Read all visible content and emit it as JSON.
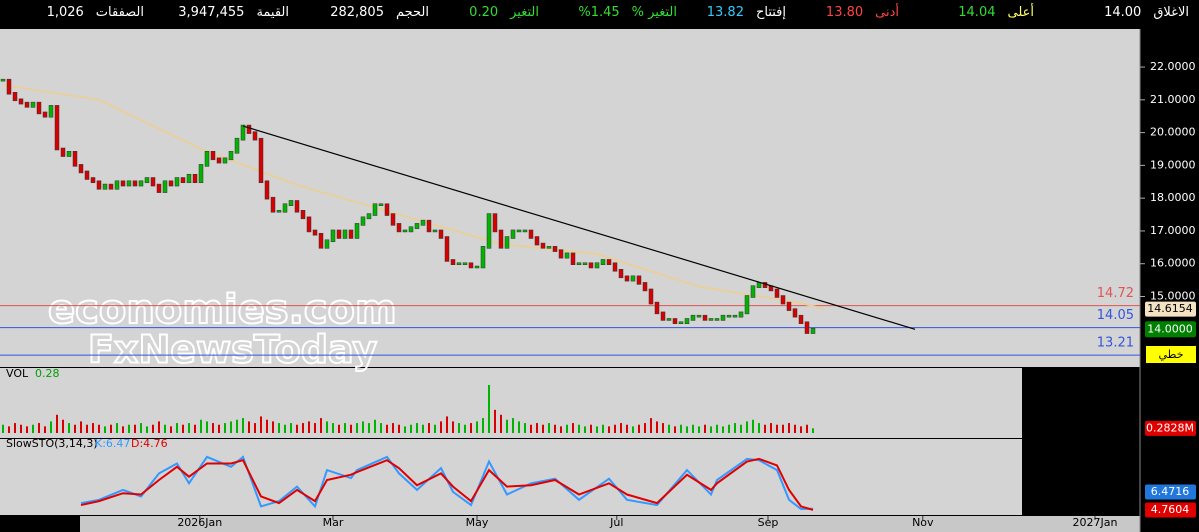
{
  "header": [
    {
      "label": "الاغلاق",
      "value": "14.00",
      "label_color": "#ffffff",
      "value_color": "#ffffff"
    },
    {
      "label": "أعلى",
      "value": "14.04",
      "label_color": "#ffff66",
      "value_color": "#33dd33"
    },
    {
      "label": "أدنى",
      "value": "13.80",
      "label_color": "#ff4444",
      "value_color": "#ff4444"
    },
    {
      "label": "إفتتاح",
      "value": "13.82",
      "label_color": "#ffffff",
      "value_color": "#33ccff"
    },
    {
      "label": "التغير %",
      "value": "1.45%",
      "label_color": "#33dd33",
      "value_color": "#33dd33"
    },
    {
      "label": "التغير",
      "value": "0.20",
      "label_color": "#33dd33",
      "value_color": "#33dd33"
    },
    {
      "label": "الحجم",
      "value": "282,805",
      "label_color": "#ffffff",
      "value_color": "#ffffff"
    },
    {
      "label": "القيمة",
      "value": "3,947,455",
      "label_color": "#ffffff",
      "value_color": "#ffffff"
    },
    {
      "label": "الصفقات",
      "value": "1,026",
      "label_color": "#ffffff",
      "value_color": "#ffffff"
    }
  ],
  "chart_data": [
    {
      "type": "candlestick",
      "xlim": [
        -0.5,
        189.5
      ],
      "xticks": [
        {
          "value": 32.8,
          "label": "2026Jan"
        },
        {
          "value": 55,
          "label": "Mar"
        },
        {
          "value": 79,
          "label": "May"
        },
        {
          "value": 102.3,
          "label": "Jul"
        },
        {
          "value": 127.5,
          "label": "Sep"
        },
        {
          "value": 153.3,
          "label": "Nov"
        },
        {
          "value": 182,
          "label": "2027Jan"
        }
      ],
      "ylim": [
        12.88,
        23.13
      ],
      "yticks": [
        {
          "value": 22,
          "label": "22.0000"
        },
        {
          "value": 21,
          "label": "21.0000"
        },
        {
          "value": 20,
          "label": "20.0000"
        },
        {
          "value": 19,
          "label": "19.0000"
        },
        {
          "value": 18,
          "label": "18.0000"
        },
        {
          "value": 17,
          "label": "17.0000"
        },
        {
          "value": 16,
          "label": "16.0000"
        },
        {
          "value": 15,
          "label": "15.0000"
        }
      ],
      "values": [
        21.6,
        21.2,
        21.0,
        20.9,
        20.8,
        20.9,
        20.6,
        20.5,
        20.8,
        19.5,
        19.3,
        19.4,
        19.0,
        18.8,
        18.6,
        18.5,
        18.3,
        18.4,
        18.3,
        18.5,
        18.4,
        18.5,
        18.4,
        18.5,
        18.6,
        18.4,
        18.2,
        18.5,
        18.4,
        18.6,
        18.5,
        18.7,
        18.5,
        19.0,
        19.4,
        19.2,
        19.1,
        19.2,
        19.4,
        19.8,
        20.2,
        20.0,
        19.8,
        18.5,
        18.0,
        17.6,
        17.6,
        17.8,
        17.9,
        17.6,
        17.4,
        17.0,
        16.9,
        16.5,
        16.7,
        17.0,
        16.8,
        17.0,
        16.8,
        17.2,
        17.4,
        17.5,
        17.8,
        17.8,
        17.5,
        17.2,
        17.0,
        17.0,
        17.1,
        17.2,
        17.3,
        17.0,
        17.0,
        16.8,
        16.1,
        16.0,
        16.0,
        16.0,
        15.9,
        15.9,
        16.5,
        17.5,
        17.0,
        16.5,
        16.8,
        17.0,
        17.0,
        17.0,
        16.8,
        16.6,
        16.5,
        16.5,
        16.4,
        16.2,
        16.3,
        16.0,
        16.0,
        16.0,
        15.9,
        16.0,
        16.1,
        16.0,
        15.8,
        15.6,
        15.5,
        15.6,
        15.4,
        15.2,
        14.8,
        14.5,
        14.3,
        14.3,
        14.2,
        14.2,
        14.3,
        14.4,
        14.4,
        14.3,
        14.3,
        14.3,
        14.4,
        14.4,
        14.4,
        14.5,
        15.0,
        15.3,
        15.4,
        15.3,
        15.2,
        15.0,
        14.8,
        14.6,
        14.4,
        14.2,
        13.9,
        14.0
      ],
      "colors": {
        "up": "#00b400",
        "down": "#d80000"
      },
      "ma": {
        "color": "#e9cf9c",
        "x": [
          0,
          16,
          33,
          49,
          66,
          83,
          99,
          116,
          133,
          137
        ],
        "values": [
          21.45,
          21.0,
          19.5,
          18.4,
          17.5,
          16.6,
          16.3,
          15.3,
          14.8,
          14.6154
        ]
      },
      "trendline": {
        "color": "#000000",
        "x": [
          40,
          152
        ],
        "values": [
          20.2,
          14.0
        ]
      },
      "levels": [
        {
          "value": 14.72,
          "color": "#e05555"
        },
        {
          "value": 14.05,
          "color": "#3355dd"
        },
        {
          "value": 13.21,
          "color": "#3355dd"
        }
      ],
      "price_marker": {
        "value": 14,
        "label": "14.0000"
      },
      "button": "خطي",
      "watermark": [
        "economies.com",
        "FxNewsToday"
      ]
    },
    {
      "type": "bar",
      "title": "VOL",
      "current": {
        "value": 0.2828,
        "label": "0.28"
      },
      "marker": {
        "value": 0.2828,
        "label": "0.2828M"
      },
      "ylim": [
        0,
        3.2
      ],
      "values": [
        0.5,
        0.4,
        0.6,
        0.5,
        0.4,
        0.5,
        0.6,
        0.4,
        0.7,
        1.1,
        0.8,
        0.6,
        0.5,
        0.7,
        0.5,
        0.6,
        0.5,
        0.4,
        0.5,
        0.6,
        0.4,
        0.5,
        0.5,
        0.6,
        0.4,
        0.5,
        0.7,
        0.5,
        0.4,
        0.6,
        0.5,
        0.6,
        0.5,
        0.8,
        0.7,
        0.6,
        0.5,
        0.6,
        0.7,
        0.8,
        0.9,
        0.7,
        0.6,
        1.0,
        0.8,
        0.7,
        0.6,
        0.5,
        0.6,
        0.5,
        0.6,
        0.7,
        0.6,
        0.9,
        0.7,
        0.6,
        0.5,
        0.6,
        0.5,
        0.6,
        0.7,
        0.6,
        0.8,
        0.6,
        0.5,
        0.6,
        0.5,
        0.4,
        0.5,
        0.6,
        0.5,
        0.6,
        0.5,
        0.7,
        1.0,
        0.7,
        0.6,
        0.5,
        0.6,
        0.7,
        0.9,
        2.9,
        1.4,
        1.1,
        0.8,
        0.9,
        0.7,
        0.6,
        0.5,
        0.6,
        0.5,
        0.6,
        0.5,
        0.4,
        0.5,
        0.6,
        0.5,
        0.4,
        0.5,
        0.4,
        0.5,
        0.4,
        0.5,
        0.6,
        0.5,
        0.4,
        0.5,
        0.6,
        0.9,
        0.7,
        0.6,
        0.5,
        0.4,
        0.5,
        0.4,
        0.5,
        0.4,
        0.5,
        0.4,
        0.5,
        0.4,
        0.5,
        0.6,
        0.5,
        0.7,
        0.8,
        0.6,
        0.5,
        0.6,
        0.5,
        0.5,
        0.6,
        0.5,
        0.4,
        0.5,
        0.2828
      ]
    },
    {
      "type": "line",
      "title": "SlowSTO(3,14,3)",
      "ylim": [
        0,
        100
      ],
      "series": [
        {
          "legend": "K:6.47",
          "color": "#3399ff",
          "x": [
            13,
            16,
            20,
            23,
            26,
            29,
            31,
            34,
            38,
            40,
            43,
            46,
            49,
            52,
            54,
            58,
            59,
            64,
            66,
            69,
            73,
            75,
            78,
            81,
            84,
            88,
            92,
            96,
            101,
            104,
            109,
            114,
            118,
            119,
            124,
            126,
            129,
            131,
            133,
            135
          ],
          "values": [
            15,
            20,
            35,
            25,
            60,
            75,
            45,
            85,
            70,
            85,
            10,
            18,
            40,
            10,
            65,
            53,
            65,
            85,
            60,
            35,
            68,
            32,
            12,
            78,
            28,
            45,
            52,
            20,
            52,
            20,
            12,
            65,
            28,
            50,
            82,
            80,
            65,
            20,
            6,
            6.4716
          ]
        },
        {
          "legend": "D:4.76",
          "color": "#e00000",
          "x": [
            13,
            16,
            20,
            23,
            26,
            29,
            31,
            34,
            38,
            40,
            43,
            46,
            49,
            52,
            54,
            58,
            59,
            64,
            66,
            69,
            73,
            75,
            78,
            81,
            84,
            88,
            92,
            96,
            101,
            104,
            109,
            114,
            118,
            119,
            124,
            126,
            129,
            131,
            133,
            135
          ],
          "values": [
            12,
            18,
            30,
            28,
            50,
            70,
            55,
            75,
            75,
            80,
            25,
            15,
            35,
            18,
            50,
            58,
            62,
            80,
            68,
            42,
            60,
            40,
            18,
            65,
            40,
            42,
            50,
            28,
            45,
            28,
            15,
            58,
            35,
            45,
            78,
            82,
            72,
            35,
            10,
            4.7604
          ]
        }
      ]
    }
  ]
}
